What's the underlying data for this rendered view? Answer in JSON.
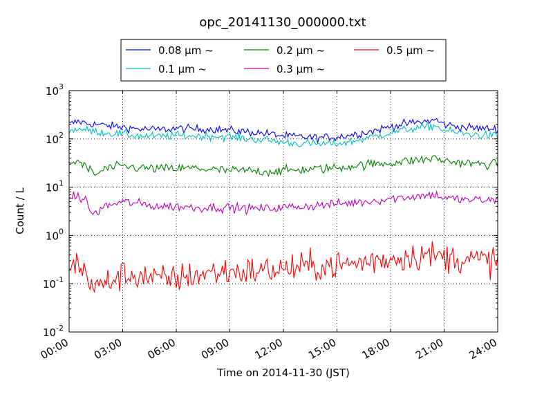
{
  "chart_data": {
    "type": "line",
    "title": "opc_20141130_000000.txt",
    "xlabel": "Time on 2014-11-30 (JST)",
    "ylabel": "Count / L",
    "x_ticks": [
      "00:00",
      "03:00",
      "06:00",
      "09:00",
      "12:00",
      "15:00",
      "18:00",
      "21:00",
      "24:00"
    ],
    "xlim": [
      0,
      24
    ],
    "y_scale": "log",
    "ylim": [
      0.01,
      1000
    ],
    "y_ticks": [
      {
        "base": "10",
        "exp": "3",
        "value": 1000
      },
      {
        "base": "10",
        "exp": "2",
        "value": 100
      },
      {
        "base": "10",
        "exp": "1",
        "value": 10
      },
      {
        "base": "10",
        "exp": "0",
        "value": 1
      },
      {
        "base": "10",
        "exp": "-1",
        "value": 0.1
      },
      {
        "base": "10",
        "exp": "-2",
        "value": 0.01
      }
    ],
    "grid": true,
    "legend_position": "top",
    "series": [
      {
        "name": "0.08 μm ~",
        "color": "#0000ff",
        "noise": 0.06,
        "anchors": [
          [
            0,
            200
          ],
          [
            0.5,
            230
          ],
          [
            1,
            210
          ],
          [
            2,
            190
          ],
          [
            3,
            175
          ],
          [
            4,
            160
          ],
          [
            5,
            155
          ],
          [
            6,
            165
          ],
          [
            7,
            160
          ],
          [
            8,
            160
          ],
          [
            9,
            150
          ],
          [
            10,
            140
          ],
          [
            11,
            130
          ],
          [
            12,
            115
          ],
          [
            13,
            110
          ],
          [
            14,
            105
          ],
          [
            15,
            110
          ],
          [
            16,
            125
          ],
          [
            17,
            145
          ],
          [
            18,
            180
          ],
          [
            19,
            210
          ],
          [
            20,
            230
          ],
          [
            20.5,
            250
          ],
          [
            21,
            200
          ],
          [
            22,
            175
          ],
          [
            23,
            165
          ],
          [
            24,
            160
          ]
        ]
      },
      {
        "name": "0.1 μm ~",
        "color": "#00bfbf",
        "noise": 0.06,
        "anchors": [
          [
            0,
            140
          ],
          [
            0.5,
            165
          ],
          [
            1,
            150
          ],
          [
            2,
            135
          ],
          [
            3,
            125
          ],
          [
            4,
            115
          ],
          [
            5,
            112
          ],
          [
            6,
            118
          ],
          [
            7,
            115
          ],
          [
            8,
            115
          ],
          [
            9,
            110
          ],
          [
            10,
            100
          ],
          [
            11,
            95
          ],
          [
            12,
            85
          ],
          [
            13,
            80
          ],
          [
            14,
            78
          ],
          [
            15,
            80
          ],
          [
            16,
            90
          ],
          [
            17,
            110
          ],
          [
            18,
            135
          ],
          [
            19,
            160
          ],
          [
            20,
            175
          ],
          [
            20.5,
            190
          ],
          [
            21,
            150
          ],
          [
            22,
            130
          ],
          [
            23,
            120
          ],
          [
            24,
            115
          ]
        ]
      },
      {
        "name": "0.2 μm ~",
        "color": "#008000",
        "noise": 0.07,
        "anchors": [
          [
            0,
            30
          ],
          [
            0.5,
            35
          ],
          [
            1,
            25
          ],
          [
            1.5,
            18
          ],
          [
            2,
            24
          ],
          [
            3,
            27
          ],
          [
            4,
            25
          ],
          [
            5,
            24
          ],
          [
            6,
            24
          ],
          [
            7,
            25
          ],
          [
            8,
            23
          ],
          [
            9,
            22
          ],
          [
            10,
            22
          ],
          [
            11,
            21
          ],
          [
            12,
            22
          ],
          [
            13,
            23
          ],
          [
            14,
            24
          ],
          [
            15,
            25
          ],
          [
            16,
            28
          ],
          [
            17,
            30
          ],
          [
            18,
            32
          ],
          [
            19,
            35
          ],
          [
            20,
            38
          ],
          [
            20.5,
            40
          ],
          [
            21,
            35
          ],
          [
            22,
            32
          ],
          [
            23,
            30
          ],
          [
            24,
            30
          ]
        ]
      },
      {
        "name": "0.3 μm ~",
        "color": "#bf00bf",
        "noise": 0.07,
        "anchors": [
          [
            0,
            6
          ],
          [
            0.5,
            6.5
          ],
          [
            1,
            5
          ],
          [
            1.3,
            2.6
          ],
          [
            2,
            4
          ],
          [
            3,
            5
          ],
          [
            4,
            4.5
          ],
          [
            5,
            4
          ],
          [
            6,
            4
          ],
          [
            7,
            3.8
          ],
          [
            8,
            3.8
          ],
          [
            9,
            3.8
          ],
          [
            10,
            3.6
          ],
          [
            11,
            3.6
          ],
          [
            12,
            3.8
          ],
          [
            13,
            4
          ],
          [
            14,
            4.2
          ],
          [
            15,
            4.5
          ],
          [
            16,
            4.8
          ],
          [
            17,
            5.2
          ],
          [
            18,
            5.8
          ],
          [
            19,
            6.3
          ],
          [
            20,
            6.8
          ],
          [
            20.5,
            7
          ],
          [
            21,
            6
          ],
          [
            22,
            5.5
          ],
          [
            23,
            5.4
          ],
          [
            24,
            5.3
          ]
        ]
      },
      {
        "name": "0.5 μm ~",
        "color": "#ff0000",
        "noise": 0.22,
        "anchors": [
          [
            0,
            0.3
          ],
          [
            0.5,
            0.25
          ],
          [
            1,
            0.15
          ],
          [
            1.5,
            0.08
          ],
          [
            2,
            0.1
          ],
          [
            3,
            0.15
          ],
          [
            4,
            0.15
          ],
          [
            5,
            0.12
          ],
          [
            6,
            0.13
          ],
          [
            7,
            0.15
          ],
          [
            8,
            0.17
          ],
          [
            9,
            0.18
          ],
          [
            10,
            0.18
          ],
          [
            11,
            0.19
          ],
          [
            12,
            0.2
          ],
          [
            13,
            0.22
          ],
          [
            14,
            0.23
          ],
          [
            15,
            0.24
          ],
          [
            16,
            0.26
          ],
          [
            17,
            0.3
          ],
          [
            18,
            0.33
          ],
          [
            19,
            0.37
          ],
          [
            20,
            0.4
          ],
          [
            21,
            0.35
          ],
          [
            22,
            0.33
          ],
          [
            23,
            0.3
          ],
          [
            24,
            0.3
          ]
        ]
      }
    ]
  }
}
